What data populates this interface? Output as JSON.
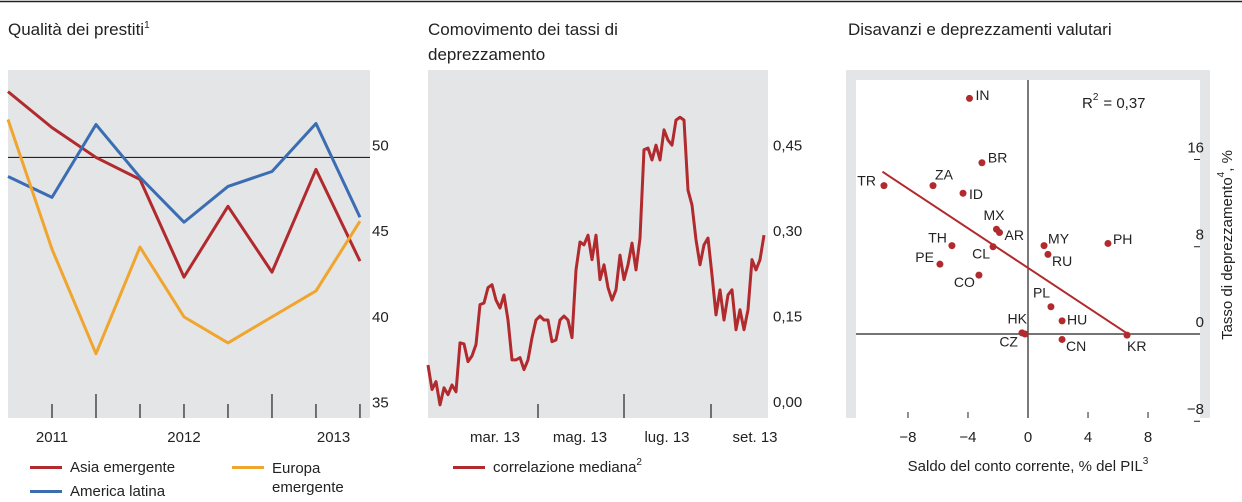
{
  "chart_data": [
    {
      "type": "line",
      "title": "Qualità dei prestiti",
      "title_note": "1",
      "x": [
        2011.5,
        2011.75,
        2012,
        2012.25,
        2012.5,
        2012.75,
        2013,
        2013.25,
        2013.5
      ],
      "xlim": [
        2011.5,
        2013.557
      ],
      "xticks": [
        {
          "value": 2011.75,
          "label": "2011"
        },
        {
          "value": 2012.5,
          "label": "2012"
        },
        {
          "value": 2013.35,
          "label": "2013"
        }
      ],
      "xtick_marks": [
        2011.75,
        2012,
        2012.25,
        2012.5,
        2012.75,
        2013,
        2013.25,
        2013.5
      ],
      "ylim": [
        34.8,
        55.1
      ],
      "yticks": [
        35,
        40,
        45,
        50
      ],
      "hline": 50,
      "series": [
        {
          "name": "Asia emergente",
          "color": "#b12a2e",
          "values": [
            53.84,
            51.74,
            50.0,
            48.72,
            43.02,
            47.15,
            43.31,
            49.3,
            43.95
          ]
        },
        {
          "name": "America latina",
          "color": "#3b6db3",
          "values": [
            48.89,
            47.67,
            51.92,
            48.84,
            46.22,
            48.31,
            49.18,
            51.98,
            46.51
          ]
        },
        {
          "name": "Europa emergente",
          "color": "#f0a52e",
          "values": [
            52.21,
            44.65,
            38.55,
            44.77,
            40.7,
            39.18,
            40.7,
            42.21,
            46.28
          ]
        }
      ]
    },
    {
      "type": "line",
      "title": "Comovimento dei tassi di deprezzamento",
      "xlim": [
        0,
        85
      ],
      "xticks": [
        {
          "value": 16.75,
          "label": "mar. 13"
        },
        {
          "value": 38,
          "label": "mag. 13"
        },
        {
          "value": 59.75,
          "label": "lug. 13"
        },
        {
          "value": 81.75,
          "label": "set. 13"
        }
      ],
      "xtick_marks": [
        27.5,
        49,
        70.75
      ],
      "ylim": [
        -0.007,
        0.604
      ],
      "yticks": [
        {
          "value": 0,
          "label": "0,00"
        },
        {
          "value": 0.15,
          "label": "0,15"
        },
        {
          "value": 0.3,
          "label": "0,30"
        },
        {
          "value": 0.45,
          "label": "0,45"
        }
      ],
      "series": [
        {
          "name": "correlazione mediana",
          "name_note": "2",
          "color": "#b12a2e",
          "values": [
            0.086,
            0.043,
            0.057,
            0.016,
            0.046,
            0.034,
            0.051,
            0.039,
            0.125,
            0.123,
            0.092,
            0.102,
            0.122,
            0.192,
            0.195,
            0.222,
            0.227,
            0.2,
            0.186,
            0.209,
            0.165,
            0.095,
            0.095,
            0.099,
            0.078,
            0.095,
            0.134,
            0.165,
            0.172,
            0.165,
            0.165,
            0.127,
            0.13,
            0.165,
            0.172,
            0.165,
            0.134,
            0.253,
            0.302,
            0.297,
            0.314,
            0.271,
            0.314,
            0.236,
            0.262,
            0.222,
            0.2,
            0.218,
            0.279,
            0.236,
            0.262,
            0.3,
            0.253,
            0.309,
            0.464,
            0.467,
            0.446,
            0.472,
            0.446,
            0.499,
            0.481,
            0.472,
            0.516,
            0.521,
            0.516,
            0.393,
            0.367,
            0.306,
            0.262,
            0.297,
            0.309,
            0.244,
            0.174,
            0.218,
            0.165,
            0.209,
            0.218,
            0.148,
            0.183,
            0.148,
            0.183,
            0.271,
            0.253,
            0.271,
            0.314
          ]
        }
      ]
    },
    {
      "type": "scatter",
      "title": "Disavanzi e deprezzamenti valutari",
      "xlabel": "Saldo del conto corrente, % del PIL",
      "xlabel_note": "3",
      "ylabel": "Tasso di deprezzamento",
      "ylabel_note": "4",
      "ylabel_unit": ", %",
      "annotation": {
        "symbol": "R",
        "exponent": "2",
        "text": "= 0,37"
      },
      "xlim": [
        -12.13,
        12.13
      ],
      "ylim": [
        -7.7,
        24.2
      ],
      "xticks": [
        {
          "value": -8,
          "label": "−8"
        },
        {
          "value": -4,
          "label": "−4"
        },
        0,
        4,
        8
      ],
      "yticks": [
        {
          "value": -8,
          "label": "−8"
        },
        0,
        8,
        16
      ],
      "color": "#b12a2e",
      "trend": {
        "slope": -0.909,
        "intercept": 6.06,
        "x_range": [
          -9.7,
          6.67
        ]
      },
      "points": [
        {
          "label": "IN",
          "x": -3.9,
          "y": 21.6
        },
        {
          "label": "BR",
          "x": -3.07,
          "y": 15.7
        },
        {
          "label": "ZA",
          "x": -6.33,
          "y": 13.6
        },
        {
          "label": "TR",
          "x": -9.6,
          "y": 13.6
        },
        {
          "label": "ID",
          "x": -4.33,
          "y": 12.9
        },
        {
          "label": "MX",
          "x": -2.1,
          "y": 9.6
        },
        {
          "label": "AR",
          "x": -1.9,
          "y": 9.3
        },
        {
          "label": "TH",
          "x": -5.07,
          "y": 8.1
        },
        {
          "label": "CL",
          "x": -2.33,
          "y": 8.0
        },
        {
          "label": "PE",
          "x": -5.87,
          "y": 6.4
        },
        {
          "label": "CO",
          "x": -3.27,
          "y": 5.4
        },
        {
          "label": "MY",
          "x": 1.07,
          "y": 8.1
        },
        {
          "label": "RU",
          "x": 1.33,
          "y": 7.3
        },
        {
          "label": "PH",
          "x": 5.33,
          "y": 8.3
        },
        {
          "label": "PL",
          "x": 1.53,
          "y": 2.5
        },
        {
          "label": "HU",
          "x": 2.27,
          "y": 1.2
        },
        {
          "label": "HK",
          "x": -0.4,
          "y": 0.1
        },
        {
          "label": "CZ",
          "x": -0.2,
          "y": 0
        },
        {
          "label": "CN",
          "x": 2.27,
          "y": -0.5
        },
        {
          "label": "KR",
          "x": 6.6,
          "y": -0.1
        }
      ]
    }
  ]
}
